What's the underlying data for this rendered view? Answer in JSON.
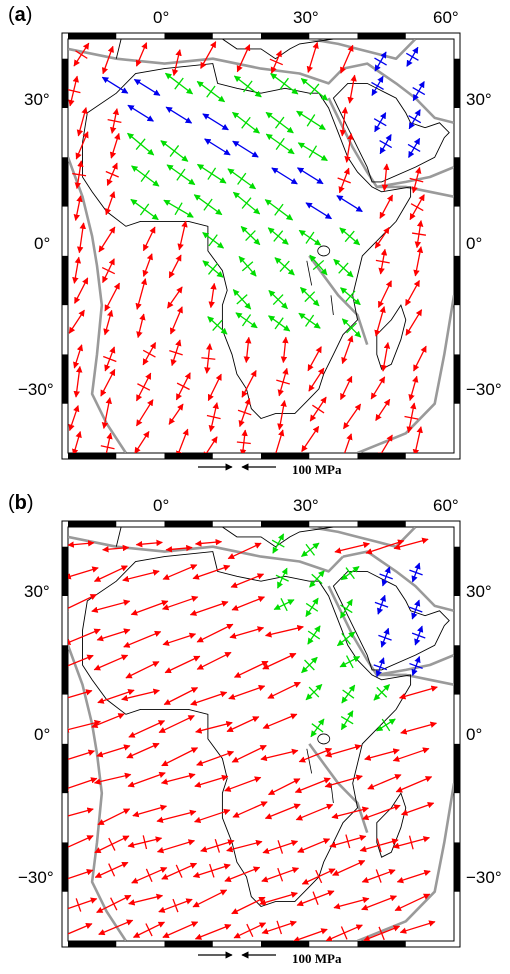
{
  "panels": [
    {
      "id": "a",
      "letter": "a",
      "scale_label": "100 MPa",
      "top_ticks": [
        "0°",
        "30°",
        "60°"
      ],
      "side_ticks": [
        "30°",
        "0°",
        "−30°"
      ]
    },
    {
      "id": "b",
      "letter": "b",
      "scale_label": "100 MPa",
      "top_ticks": [
        "0°",
        "30°",
        "60°"
      ],
      "side_ticks": [
        "30°",
        "0°",
        "−30°"
      ]
    }
  ],
  "map": {
    "lon_range": [
      -20,
      60
    ],
    "lat_range": [
      -42,
      42
    ],
    "tick_lons": [
      0,
      30,
      60
    ],
    "tick_lats": [
      30,
      0,
      -30
    ],
    "colors": {
      "tension": "#ff0000",
      "mixed": "#00dd00",
      "compression": "#0000ee",
      "plate_boundary": "#9a9a9a",
      "coastline": "#000000"
    },
    "scale_stress_mpa": 100
  }
}
